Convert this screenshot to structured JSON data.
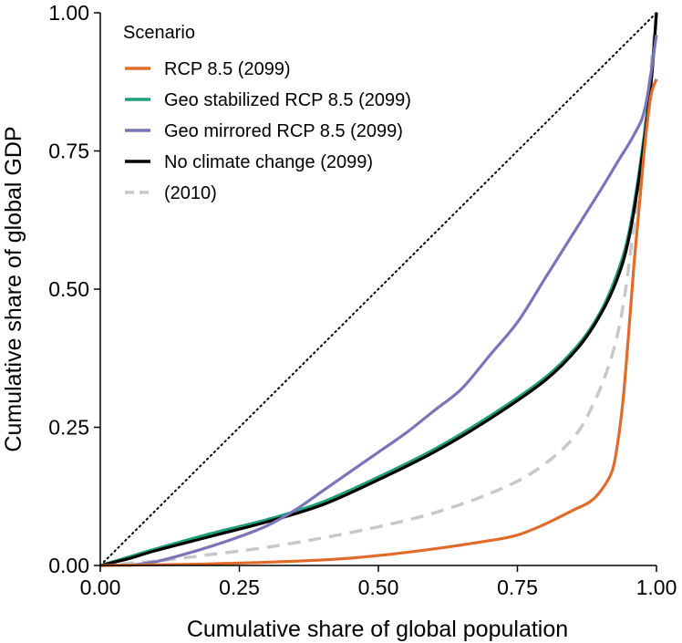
{
  "chart_data": {
    "type": "line",
    "title": "",
    "xlabel": "Cumulative share of global population",
    "ylabel": "Cumulative share of global GDP",
    "xlim": [
      0,
      1
    ],
    "ylim": [
      0,
      1
    ],
    "xticks": [
      "0.00",
      "0.25",
      "0.50",
      "0.75",
      "1.00"
    ],
    "yticks": [
      "0.00",
      "0.25",
      "0.50",
      "0.75",
      "1.00"
    ],
    "grid": false,
    "legend": {
      "title": "Scenario",
      "placement": "top-left"
    },
    "reference_line": {
      "style": "dotted",
      "color": "#000000",
      "from": [
        0,
        0
      ],
      "to": [
        1,
        1
      ]
    },
    "series": [
      {
        "name": "(2010)",
        "color": "#c8c8c8",
        "dash": "dashed",
        "points": [
          [
            0.0,
            0.0
          ],
          [
            0.1,
            0.008
          ],
          [
            0.2,
            0.02
          ],
          [
            0.3,
            0.033
          ],
          [
            0.4,
            0.05
          ],
          [
            0.5,
            0.07
          ],
          [
            0.6,
            0.095
          ],
          [
            0.7,
            0.13
          ],
          [
            0.78,
            0.17
          ],
          [
            0.85,
            0.23
          ],
          [
            0.89,
            0.3
          ],
          [
            0.92,
            0.38
          ],
          [
            0.94,
            0.47
          ],
          [
            0.96,
            0.62
          ],
          [
            0.98,
            0.8
          ],
          [
            1.0,
            1.0
          ]
        ]
      },
      {
        "name": "Geo stabilized RCP 8.5 (2099)",
        "color": "#1f9e7a",
        "dash": "solid",
        "points": [
          [
            0.0,
            0.0
          ],
          [
            0.05,
            0.015
          ],
          [
            0.1,
            0.03
          ],
          [
            0.2,
            0.058
          ],
          [
            0.3,
            0.083
          ],
          [
            0.4,
            0.115
          ],
          [
            0.5,
            0.16
          ],
          [
            0.6,
            0.21
          ],
          [
            0.7,
            0.27
          ],
          [
            0.8,
            0.34
          ],
          [
            0.86,
            0.4
          ],
          [
            0.9,
            0.46
          ],
          [
            0.93,
            0.53
          ],
          [
            0.95,
            0.6
          ],
          [
            0.97,
            0.72
          ],
          [
            0.99,
            0.88
          ],
          [
            1.0,
            1.0
          ]
        ]
      },
      {
        "name": "No climate change (2099)",
        "color": "#000000",
        "dash": "solid",
        "points": [
          [
            0.0,
            0.0
          ],
          [
            0.05,
            0.012
          ],
          [
            0.1,
            0.027
          ],
          [
            0.2,
            0.053
          ],
          [
            0.3,
            0.079
          ],
          [
            0.4,
            0.11
          ],
          [
            0.5,
            0.155
          ],
          [
            0.6,
            0.205
          ],
          [
            0.7,
            0.265
          ],
          [
            0.8,
            0.335
          ],
          [
            0.86,
            0.395
          ],
          [
            0.9,
            0.455
          ],
          [
            0.93,
            0.52
          ],
          [
            0.95,
            0.59
          ],
          [
            0.97,
            0.71
          ],
          [
            0.99,
            0.87
          ],
          [
            1.0,
            1.0
          ]
        ]
      },
      {
        "name": "Geo mirrored RCP 8.5 (2099)",
        "color": "#7b74b8",
        "dash": "solid",
        "points": [
          [
            0.05,
            0.0
          ],
          [
            0.1,
            0.007
          ],
          [
            0.15,
            0.02
          ],
          [
            0.2,
            0.035
          ],
          [
            0.25,
            0.052
          ],
          [
            0.3,
            0.072
          ],
          [
            0.35,
            0.1
          ],
          [
            0.4,
            0.135
          ],
          [
            0.45,
            0.17
          ],
          [
            0.5,
            0.205
          ],
          [
            0.55,
            0.24
          ],
          [
            0.6,
            0.28
          ],
          [
            0.65,
            0.32
          ],
          [
            0.7,
            0.38
          ],
          [
            0.75,
            0.44
          ],
          [
            0.8,
            0.52
          ],
          [
            0.85,
            0.6
          ],
          [
            0.9,
            0.68
          ],
          [
            0.93,
            0.73
          ],
          [
            0.96,
            0.78
          ],
          [
            0.98,
            0.83
          ],
          [
            1.0,
            0.96
          ]
        ]
      },
      {
        "name": "RCP 8.5 (2099)",
        "color": "#e06b2a",
        "dash": "solid",
        "points": [
          [
            0.0,
            0.0
          ],
          [
            0.2,
            0.003
          ],
          [
            0.4,
            0.01
          ],
          [
            0.5,
            0.018
          ],
          [
            0.6,
            0.03
          ],
          [
            0.7,
            0.045
          ],
          [
            0.75,
            0.055
          ],
          [
            0.8,
            0.075
          ],
          [
            0.85,
            0.1
          ],
          [
            0.88,
            0.115
          ],
          [
            0.9,
            0.135
          ],
          [
            0.92,
            0.17
          ],
          [
            0.93,
            0.22
          ],
          [
            0.94,
            0.3
          ],
          [
            0.95,
            0.42
          ],
          [
            0.96,
            0.55
          ],
          [
            0.97,
            0.66
          ],
          [
            0.98,
            0.77
          ],
          [
            0.99,
            0.85
          ],
          [
            1.0,
            0.88
          ]
        ]
      }
    ]
  },
  "legend_order": [
    4,
    1,
    3,
    2,
    0
  ]
}
